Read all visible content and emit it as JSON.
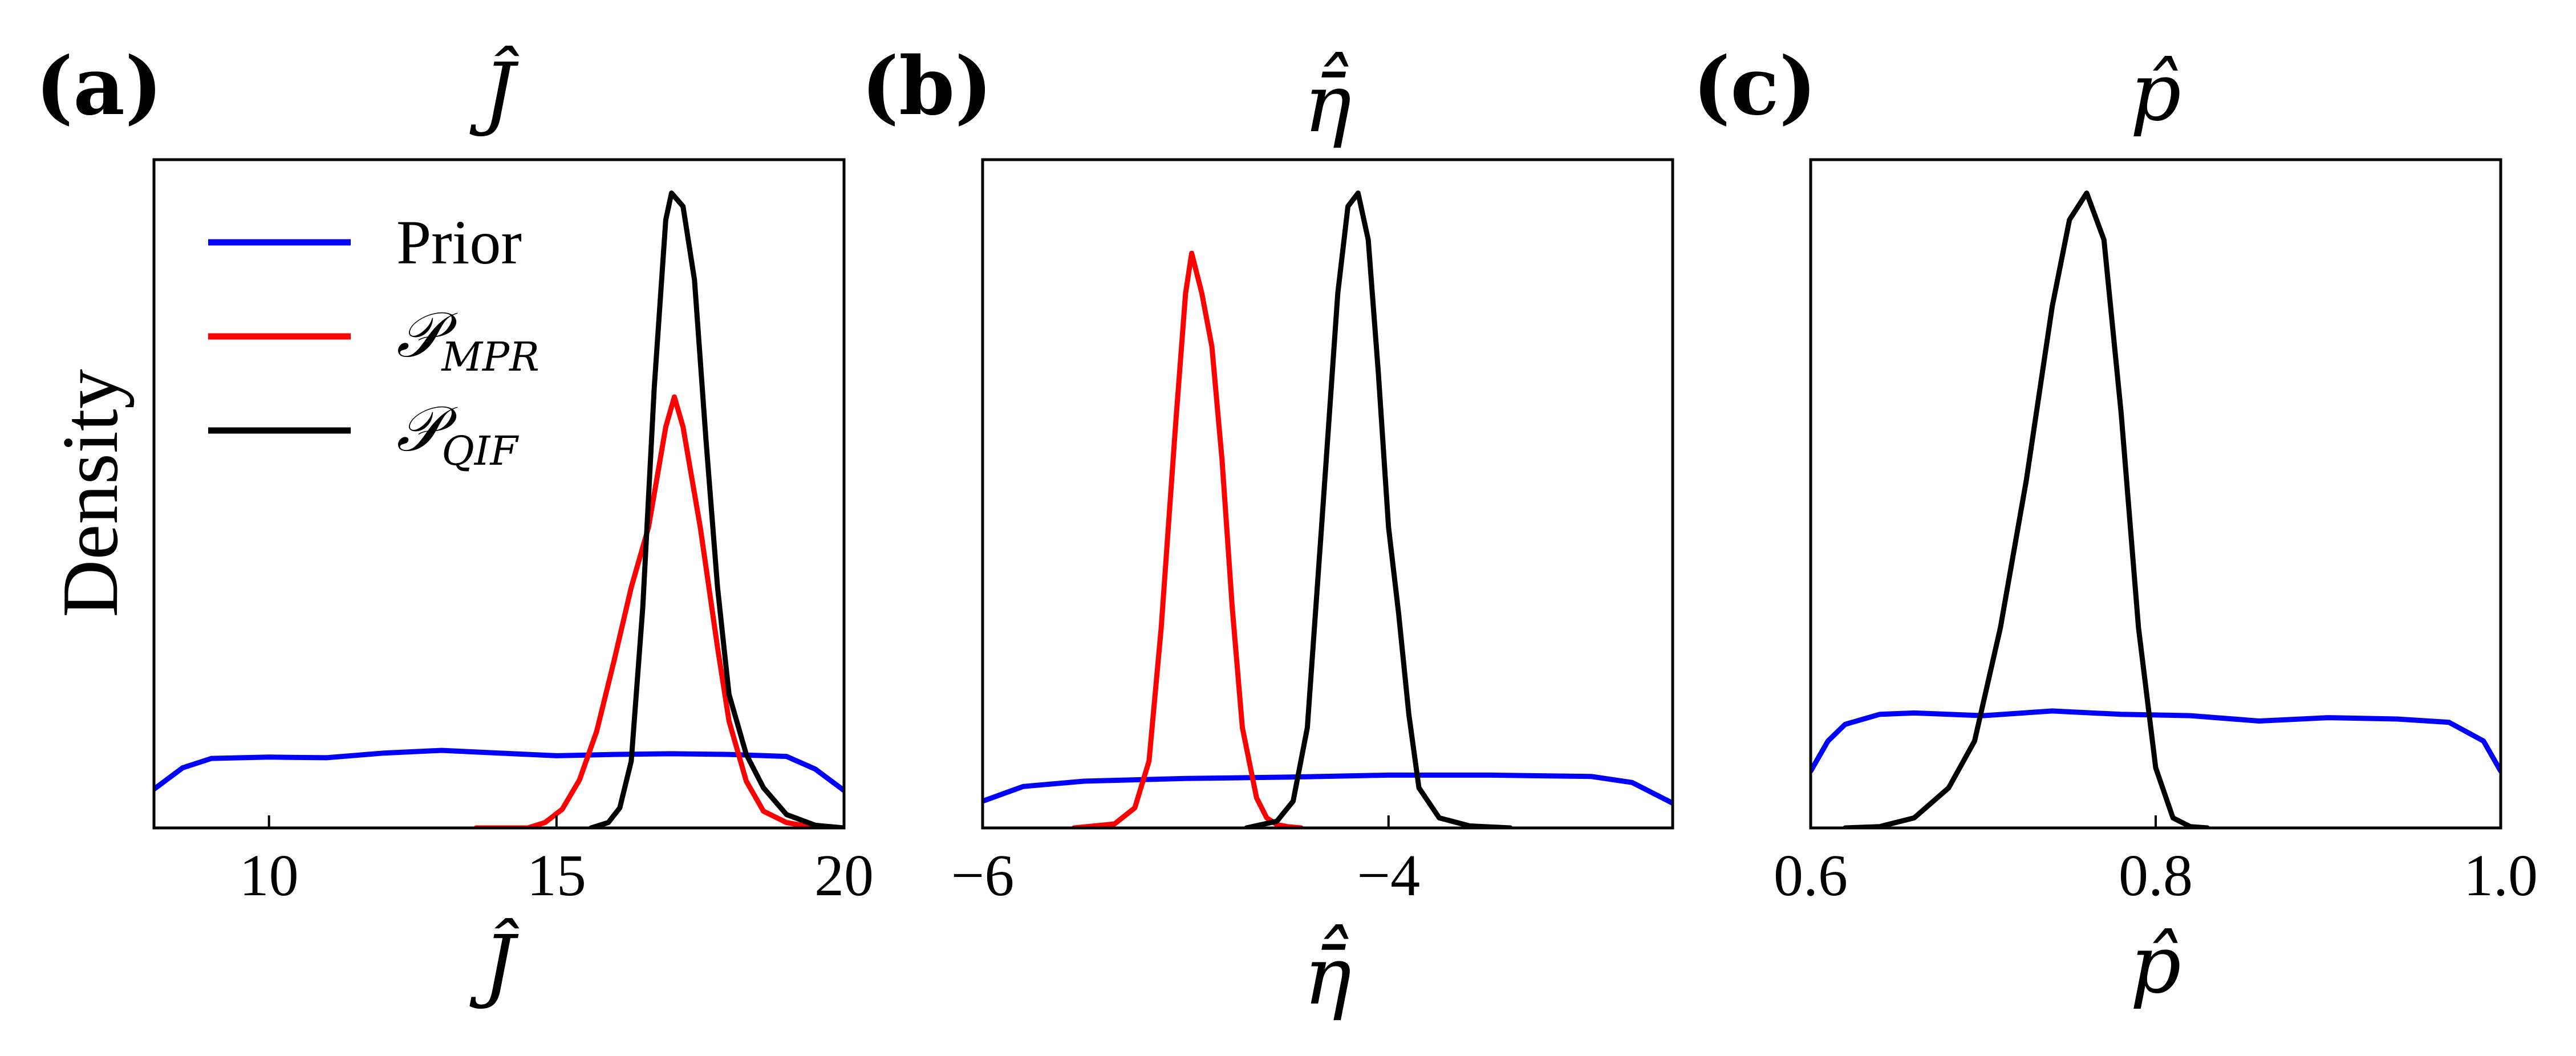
{
  "figure": {
    "ylabel": "Density",
    "legend": {
      "placement": "top-left of panel (a)",
      "entries": [
        {
          "label": "Prior",
          "color": "#0000ff"
        },
        {
          "label": "𝒫",
          "subscript": "MPR",
          "color": "#ff0000"
        },
        {
          "label": "𝒫",
          "subscript": "QIF",
          "color": "#000000"
        }
      ]
    }
  },
  "chart_data": [
    {
      "type": "line",
      "panel": "(a)",
      "title": "Ĵ",
      "xlabel": "Ĵ",
      "ylabel": "Density",
      "xlim": [
        8,
        20
      ],
      "ylim": [
        0,
        1
      ],
      "xticks": [
        10,
        15,
        20
      ],
      "xtick_labels": [
        "10",
        "15",
        "20"
      ],
      "series": [
        {
          "name": "Prior",
          "color": "#0000ff",
          "x": [
            8,
            8.5,
            9,
            10,
            11,
            12,
            13,
            14,
            15,
            16,
            17,
            18,
            19,
            19.5,
            20
          ],
          "y": [
            0.058,
            0.09,
            0.104,
            0.106,
            0.105,
            0.112,
            0.116,
            0.112,
            0.108,
            0.11,
            0.111,
            0.11,
            0.107,
            0.088,
            0.056
          ]
        },
        {
          "name": "𝒫 MPR",
          "color": "#ff0000",
          "x": [
            13.6,
            14.5,
            14.8,
            15.1,
            15.4,
            15.7,
            16.0,
            16.3,
            16.6,
            16.9,
            17.05,
            17.2,
            17.5,
            17.8,
            18.0,
            18.3,
            18.6,
            19.0,
            19.4,
            19.7
          ],
          "y": [
            0,
            0,
            0.008,
            0.028,
            0.072,
            0.145,
            0.25,
            0.36,
            0.45,
            0.6,
            0.645,
            0.6,
            0.45,
            0.27,
            0.16,
            0.07,
            0.025,
            0.008,
            0.002,
            0
          ]
        },
        {
          "name": "𝒫 QIF",
          "color": "#000000",
          "x": [
            15.6,
            15.9,
            16.1,
            16.3,
            16.5,
            16.7,
            16.9,
            17.0,
            17.2,
            17.4,
            17.6,
            17.8,
            18.0,
            18.3,
            18.6,
            19.0,
            19.5,
            20.0
          ],
          "y": [
            0,
            0.008,
            0.03,
            0.1,
            0.33,
            0.66,
            0.91,
            0.95,
            0.93,
            0.82,
            0.58,
            0.36,
            0.2,
            0.11,
            0.06,
            0.02,
            0.004,
            0
          ]
        }
      ]
    },
    {
      "type": "line",
      "panel": "(b)",
      "title": "η̄̂",
      "xlabel": "η̄̂",
      "ylabel": "",
      "xlim": [
        -6,
        -2.6
      ],
      "ylim": [
        0,
        1
      ],
      "xticks": [
        -6,
        -4
      ],
      "xtick_labels": [
        "−6",
        "−4"
      ],
      "series": [
        {
          "name": "Prior",
          "color": "#0000ff",
          "x": [
            -6,
            -5.8,
            -5.5,
            -5,
            -4.5,
            -4,
            -3.5,
            -3,
            -2.8,
            -2.6
          ],
          "y": [
            0.04,
            0.062,
            0.07,
            0.074,
            0.076,
            0.079,
            0.079,
            0.077,
            0.068,
            0.037
          ]
        },
        {
          "name": "𝒫 MPR",
          "color": "#ff0000",
          "x": [
            -5.55,
            -5.35,
            -5.25,
            -5.18,
            -5.12,
            -5.05,
            -5.0,
            -4.97,
            -4.92,
            -4.87,
            -4.82,
            -4.77,
            -4.72,
            -4.65,
            -4.6,
            -4.55,
            -4.5,
            -4.43
          ],
          "y": [
            0,
            0.006,
            0.03,
            0.1,
            0.3,
            0.6,
            0.8,
            0.86,
            0.8,
            0.72,
            0.55,
            0.33,
            0.15,
            0.045,
            0.015,
            0.005,
            0.002,
            0
          ]
        },
        {
          "name": "𝒫 QIF",
          "color": "#000000",
          "x": [
            -4.7,
            -4.55,
            -4.47,
            -4.4,
            -4.33,
            -4.25,
            -4.2,
            -4.15,
            -4.1,
            -4.05,
            -4.0,
            -3.95,
            -3.9,
            -3.85,
            -3.75,
            -3.6,
            -3.4
          ],
          "y": [
            0,
            0.01,
            0.04,
            0.15,
            0.45,
            0.8,
            0.93,
            0.95,
            0.88,
            0.68,
            0.45,
            0.32,
            0.17,
            0.06,
            0.015,
            0.003,
            0
          ]
        }
      ]
    },
    {
      "type": "line",
      "panel": "(c)",
      "title": "p̂",
      "xlabel": "p̂",
      "ylabel": "",
      "xlim": [
        0.6,
        1.0
      ],
      "ylim": [
        0,
        1
      ],
      "xticks": [
        0.6,
        0.8,
        1.0
      ],
      "xtick_labels": [
        "0.6",
        "0.8",
        "1.0"
      ],
      "series": [
        {
          "name": "Prior",
          "color": "#0000ff",
          "x": [
            0.6,
            0.61,
            0.62,
            0.64,
            0.66,
            0.7,
            0.74,
            0.78,
            0.82,
            0.86,
            0.9,
            0.94,
            0.97,
            0.99,
            1.0
          ],
          "y": [
            0.085,
            0.13,
            0.155,
            0.17,
            0.172,
            0.168,
            0.175,
            0.17,
            0.168,
            0.16,
            0.165,
            0.163,
            0.158,
            0.13,
            0.085
          ]
        },
        {
          "name": "𝒫 QIF",
          "color": "#000000",
          "x": [
            0.62,
            0.64,
            0.66,
            0.68,
            0.695,
            0.71,
            0.725,
            0.74,
            0.75,
            0.76,
            0.77,
            0.78,
            0.79,
            0.8,
            0.81,
            0.82,
            0.83
          ],
          "y": [
            0,
            0.002,
            0.015,
            0.06,
            0.13,
            0.3,
            0.52,
            0.78,
            0.91,
            0.95,
            0.88,
            0.62,
            0.3,
            0.09,
            0.015,
            0.002,
            0
          ]
        }
      ]
    }
  ]
}
